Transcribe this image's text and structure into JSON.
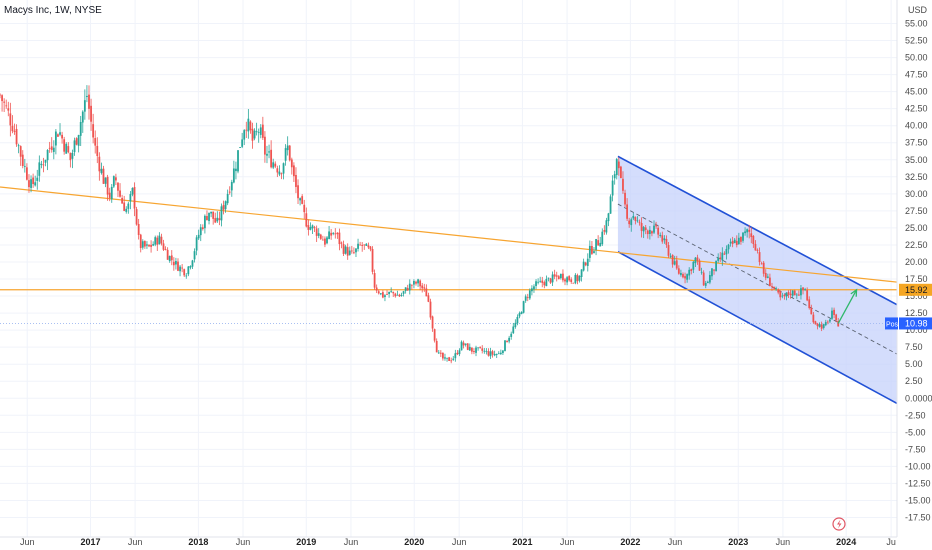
{
  "chart_data": {
    "type": "candlestick",
    "title": "Macys Inc, 1W, NYSE",
    "currency": "USD",
    "y_axis": {
      "range": [
        -20,
        57.5
      ],
      "ticks": [
        55.0,
        52.5,
        50.0,
        47.5,
        45.0,
        42.5,
        40.0,
        37.5,
        35.0,
        32.5,
        30.0,
        27.5,
        25.0,
        22.5,
        20.0,
        17.5,
        15.0,
        12.5,
        10.0,
        7.5,
        5.0,
        2.5,
        0.0,
        -2.5,
        -5.0,
        -7.5,
        -10.0,
        -12.5,
        -15.0,
        -17.5
      ],
      "tick_labels": [
        "55.00",
        "52.50",
        "50.00",
        "47.50",
        "45.00",
        "42.50",
        "40.00",
        "37.50",
        "35.00",
        "32.50",
        "30.00",
        "27.50",
        "25.00",
        "22.50",
        "20.00",
        "17.50",
        "15.00",
        "12.50",
        "10.00",
        "7.50",
        "5.00",
        "2.50",
        "0.0000",
        "-2.50",
        "-5.00",
        "-7.50",
        "-10.00",
        "-12.50",
        "-15.00",
        "-17.50"
      ]
    },
    "x_axis": {
      "range": [
        "2016-03-01",
        "2024-07-01"
      ],
      "ticks": [
        {
          "date": "2016-06-01",
          "label": "Jun",
          "bold": false
        },
        {
          "date": "2017-01-01",
          "label": "2017",
          "bold": true
        },
        {
          "date": "2017-06-01",
          "label": "Jun",
          "bold": false
        },
        {
          "date": "2018-01-01",
          "label": "2018",
          "bold": true
        },
        {
          "date": "2018-06-01",
          "label": "Jun",
          "bold": false
        },
        {
          "date": "2019-01-01",
          "label": "2019",
          "bold": true
        },
        {
          "date": "2019-06-01",
          "label": "Jun",
          "bold": false
        },
        {
          "date": "2020-01-01",
          "label": "2020",
          "bold": true
        },
        {
          "date": "2020-06-01",
          "label": "Jun",
          "bold": false
        },
        {
          "date": "2021-01-01",
          "label": "2021",
          "bold": true
        },
        {
          "date": "2021-06-01",
          "label": "Jun",
          "bold": false
        },
        {
          "date": "2022-01-01",
          "label": "2022",
          "bold": true
        },
        {
          "date": "2022-06-01",
          "label": "Jun",
          "bold": false
        },
        {
          "date": "2023-01-01",
          "label": "2023",
          "bold": true
        },
        {
          "date": "2023-06-01",
          "label": "Jun",
          "bold": false
        },
        {
          "date": "2024-01-01",
          "label": "2024",
          "bold": true
        },
        {
          "date": "2024-06-01",
          "label": "Ju",
          "bold": false
        }
      ]
    },
    "price_path": [
      [
        "2016-03-01",
        44.5
      ],
      [
        "2016-04-15",
        40.0
      ],
      [
        "2016-05-15",
        35.0
      ],
      [
        "2016-06-15",
        31.0
      ],
      [
        "2016-08-01",
        35.5
      ],
      [
        "2016-09-15",
        39.5
      ],
      [
        "2016-10-25",
        35.0
      ],
      [
        "2016-11-25",
        40.0
      ],
      [
        "2016-12-20",
        44.5
      ],
      [
        "2017-01-15",
        37.0
      ],
      [
        "2017-02-15",
        32.0
      ],
      [
        "2017-03-10",
        29.5
      ],
      [
        "2017-03-25",
        32.5
      ],
      [
        "2017-04-15",
        29.0
      ],
      [
        "2017-05-05",
        27.5
      ],
      [
        "2017-05-25",
        30.5
      ],
      [
        "2017-06-15",
        22.5
      ],
      [
        "2017-07-15",
        22.0
      ],
      [
        "2017-08-20",
        23.5
      ],
      [
        "2017-09-20",
        21.0
      ],
      [
        "2017-10-20",
        19.5
      ],
      [
        "2017-11-20",
        18.5
      ],
      [
        "2017-12-10",
        20.5
      ],
      [
        "2018-01-05",
        24.5
      ],
      [
        "2018-02-05",
        27.5
      ],
      [
        "2018-03-05",
        25.5
      ],
      [
        "2018-04-05",
        29.5
      ],
      [
        "2018-05-05",
        34.0
      ],
      [
        "2018-05-25",
        38.0
      ],
      [
        "2018-06-10",
        41.0
      ],
      [
        "2018-07-05",
        37.5
      ],
      [
        "2018-07-25",
        39.5
      ],
      [
        "2018-08-15",
        36.0
      ],
      [
        "2018-09-05",
        35.0
      ],
      [
        "2018-10-05",
        33.5
      ],
      [
        "2018-11-01",
        37.0
      ],
      [
        "2018-11-15",
        33.0
      ],
      [
        "2018-12-10",
        28.5
      ],
      [
        "2019-01-05",
        25.5
      ],
      [
        "2019-02-05",
        24.5
      ],
      [
        "2019-03-05",
        23.0
      ],
      [
        "2019-04-05",
        24.5
      ],
      [
        "2019-05-05",
        22.0
      ],
      [
        "2019-06-05",
        21.0
      ],
      [
        "2019-07-05",
        22.5
      ],
      [
        "2019-08-05",
        21.5
      ],
      [
        "2019-08-20",
        16.5
      ],
      [
        "2019-09-15",
        15.0
      ],
      [
        "2019-10-15",
        15.5
      ],
      [
        "2019-11-15",
        15.0
      ],
      [
        "2019-12-15",
        16.5
      ],
      [
        "2020-01-15",
        17.0
      ],
      [
        "2020-02-15",
        15.0
      ],
      [
        "2020-03-01",
        11.0
      ],
      [
        "2020-03-20",
        6.5
      ],
      [
        "2020-04-15",
        5.5
      ],
      [
        "2020-05-15",
        6.0
      ],
      [
        "2020-06-10",
        8.0
      ],
      [
        "2020-07-15",
        7.0
      ],
      [
        "2020-08-15",
        7.0
      ],
      [
        "2020-09-15",
        6.5
      ],
      [
        "2020-10-15",
        6.5
      ],
      [
        "2020-11-15",
        9.0
      ],
      [
        "2020-12-15",
        11.5
      ],
      [
        "2021-01-15",
        15.0
      ],
      [
        "2021-02-10",
        16.5
      ],
      [
        "2021-03-10",
        17.0
      ],
      [
        "2021-04-10",
        17.5
      ],
      [
        "2021-05-10",
        18.0
      ],
      [
        "2021-06-10",
        17.5
      ],
      [
        "2021-07-10",
        17.5
      ],
      [
        "2021-08-15",
        21.5
      ],
      [
        "2021-09-15",
        23.0
      ],
      [
        "2021-10-15",
        26.0
      ],
      [
        "2021-11-10",
        33.5
      ],
      [
        "2021-11-20",
        36.5
      ],
      [
        "2021-12-01",
        31.0
      ],
      [
        "2021-12-20",
        26.0
      ],
      [
        "2022-01-10",
        27.0
      ],
      [
        "2022-02-10",
        24.5
      ],
      [
        "2022-03-10",
        25.0
      ],
      [
        "2022-04-10",
        24.0
      ],
      [
        "2022-05-10",
        21.5
      ],
      [
        "2022-06-10",
        18.5
      ],
      [
        "2022-07-10",
        18.0
      ],
      [
        "2022-08-10",
        20.5
      ],
      [
        "2022-09-10",
        16.5
      ],
      [
        "2022-10-10",
        19.0
      ],
      [
        "2022-11-10",
        21.0
      ],
      [
        "2022-12-10",
        22.5
      ],
      [
        "2023-01-10",
        23.5
      ],
      [
        "2023-02-05",
        24.5
      ],
      [
        "2023-03-05",
        22.0
      ],
      [
        "2023-03-25",
        18.5
      ],
      [
        "2023-04-25",
        16.5
      ],
      [
        "2023-05-25",
        14.5
      ],
      [
        "2023-06-25",
        15.5
      ],
      [
        "2023-07-25",
        15.5
      ],
      [
        "2023-08-15",
        16.0
      ],
      [
        "2023-09-01",
        12.5
      ],
      [
        "2023-09-20",
        11.0
      ],
      [
        "2023-10-15",
        10.5
      ],
      [
        "2023-11-01",
        11.0
      ],
      [
        "2023-11-15",
        13.0
      ],
      [
        "2023-11-25",
        11.0
      ],
      [
        "2023-12-05",
        10.98
      ]
    ],
    "annotations": {
      "channel": {
        "upper": {
          "start": [
            "2021-11-20",
            35.5
          ],
          "end": [
            "2024-07-01",
            13.5
          ]
        },
        "lower": {
          "start": [
            "2021-11-20",
            21.5
          ],
          "end": [
            "2024-07-01",
            -1.0
          ]
        },
        "mid": {
          "start": [
            "2021-11-20",
            28.5
          ],
          "end": [
            "2024-07-01",
            6.25
          ]
        }
      },
      "trend_line": {
        "start": [
          "2016-03-01",
          31.0
        ],
        "end": [
          "2024-07-01",
          17.0
        ]
      },
      "horizontal_level": 15.92,
      "projection_arrow": {
        "start": [
          "2023-12-05",
          10.98
        ],
        "end": [
          "2024-02-05",
          15.92
        ]
      }
    },
    "price_tags": [
      {
        "name": "level",
        "value": 15.92,
        "label": "15.92",
        "bg": "#f5a623",
        "fg": "#131722"
      },
      {
        "name": "last-price",
        "value": 10.98,
        "label": "10.98",
        "prefix": "Post",
        "bg": "#2962ff",
        "fg": "#ffffff"
      }
    ],
    "colors": {
      "up": "#26a69a",
      "down": "#ef5350",
      "channel_line": "#2151d6",
      "channel_fill": "#c5d2fb",
      "trend_line": "#f7a531",
      "level_line": "#f7a531",
      "arrow": "#2fb86b",
      "last_price_line": "#9fb8f0",
      "grid": "#f0f3fa"
    }
  }
}
